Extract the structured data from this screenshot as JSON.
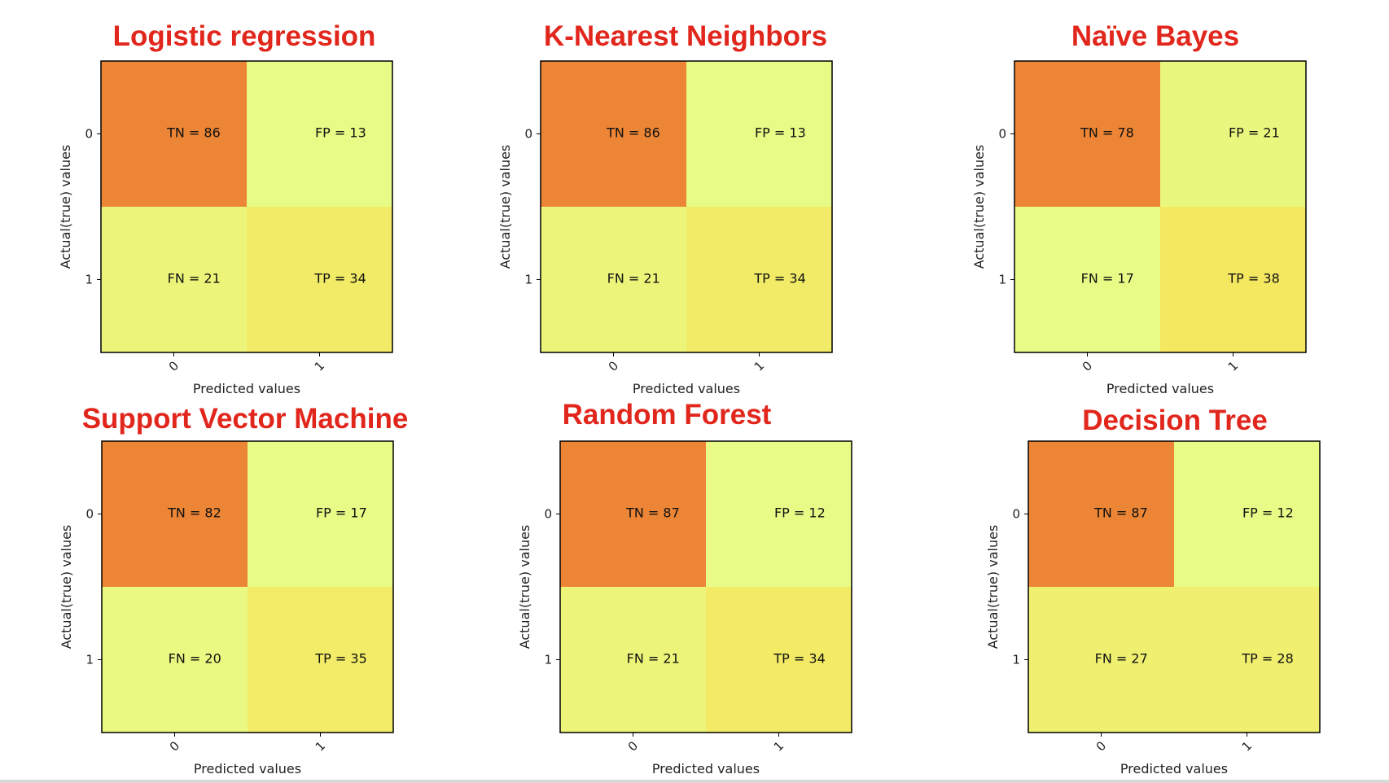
{
  "chart_data": [
    {
      "type": "heatmap",
      "title": "Logistic regression",
      "xlabel": "Predicted values",
      "ylabel": "Actual(true) values",
      "x_tick_labels": [
        "0",
        "1"
      ],
      "y_tick_labels": [
        "0",
        "1"
      ],
      "cells": [
        {
          "row": 0,
          "col": 0,
          "label": "TN = 86",
          "value": 86
        },
        {
          "row": 0,
          "col": 1,
          "label": "FP = 13",
          "value": 13
        },
        {
          "row": 1,
          "col": 0,
          "label": "FN = 21",
          "value": 21
        },
        {
          "row": 1,
          "col": 1,
          "label": "TP = 34",
          "value": 34
        }
      ]
    },
    {
      "type": "heatmap",
      "title": "K-Nearest Neighbors",
      "xlabel": "Predicted values",
      "ylabel": "Actual(true) values",
      "x_tick_labels": [
        "0",
        "1"
      ],
      "y_tick_labels": [
        "0",
        "1"
      ],
      "cells": [
        {
          "row": 0,
          "col": 0,
          "label": "TN = 86",
          "value": 86
        },
        {
          "row": 0,
          "col": 1,
          "label": "FP = 13",
          "value": 13
        },
        {
          "row": 1,
          "col": 0,
          "label": "FN = 21",
          "value": 21
        },
        {
          "row": 1,
          "col": 1,
          "label": "TP = 34",
          "value": 34
        }
      ]
    },
    {
      "type": "heatmap",
      "title": "Naïve Bayes",
      "xlabel": "Predicted values",
      "ylabel": "Actual(true) values",
      "x_tick_labels": [
        "0",
        "1"
      ],
      "y_tick_labels": [
        "0",
        "1"
      ],
      "cells": [
        {
          "row": 0,
          "col": 0,
          "label": "TN = 78",
          "value": 78
        },
        {
          "row": 0,
          "col": 1,
          "label": "FP = 21",
          "value": 21
        },
        {
          "row": 1,
          "col": 0,
          "label": "FN = 17",
          "value": 17
        },
        {
          "row": 1,
          "col": 1,
          "label": "TP = 38",
          "value": 38
        }
      ]
    },
    {
      "type": "heatmap",
      "title": "Support Vector Machine",
      "xlabel": "Predicted values",
      "ylabel": "Actual(true) values",
      "x_tick_labels": [
        "0",
        "1"
      ],
      "y_tick_labels": [
        "0",
        "1"
      ],
      "cells": [
        {
          "row": 0,
          "col": 0,
          "label": "TN = 82",
          "value": 82
        },
        {
          "row": 0,
          "col": 1,
          "label": "FP = 17",
          "value": 17
        },
        {
          "row": 1,
          "col": 0,
          "label": "FN = 20",
          "value": 20
        },
        {
          "row": 1,
          "col": 1,
          "label": "TP = 35",
          "value": 35
        }
      ]
    },
    {
      "type": "heatmap",
      "title": "Random Forest",
      "xlabel": "Predicted values",
      "ylabel": "Actual(true) values",
      "x_tick_labels": [
        "0",
        "1"
      ],
      "y_tick_labels": [
        "0",
        "1"
      ],
      "cells": [
        {
          "row": 0,
          "col": 0,
          "label": "TN = 87",
          "value": 87
        },
        {
          "row": 0,
          "col": 1,
          "label": "FP = 12",
          "value": 12
        },
        {
          "row": 1,
          "col": 0,
          "label": "FN = 21",
          "value": 21
        },
        {
          "row": 1,
          "col": 1,
          "label": "TP = 34",
          "value": 34
        }
      ]
    },
    {
      "type": "heatmap",
      "title": "Decision Tree",
      "xlabel": "Predicted values",
      "ylabel": "Actual(true) values",
      "x_tick_labels": [
        "0",
        "1"
      ],
      "y_tick_labels": [
        "0",
        "1"
      ],
      "cells": [
        {
          "row": 0,
          "col": 0,
          "label": "TN = 87",
          "value": 87
        },
        {
          "row": 0,
          "col": 1,
          "label": "FP = 12",
          "value": 12
        },
        {
          "row": 1,
          "col": 0,
          "label": "FN = 27",
          "value": 27
        },
        {
          "row": 1,
          "col": 1,
          "label": "TP = 28",
          "value": 28
        }
      ]
    }
  ],
  "colors": {
    "title": "#e1261c",
    "colormap_low": "#e8fb86",
    "colormap_mid": "#fae050",
    "colormap_high": "#ec8535",
    "frame": "#000000"
  }
}
